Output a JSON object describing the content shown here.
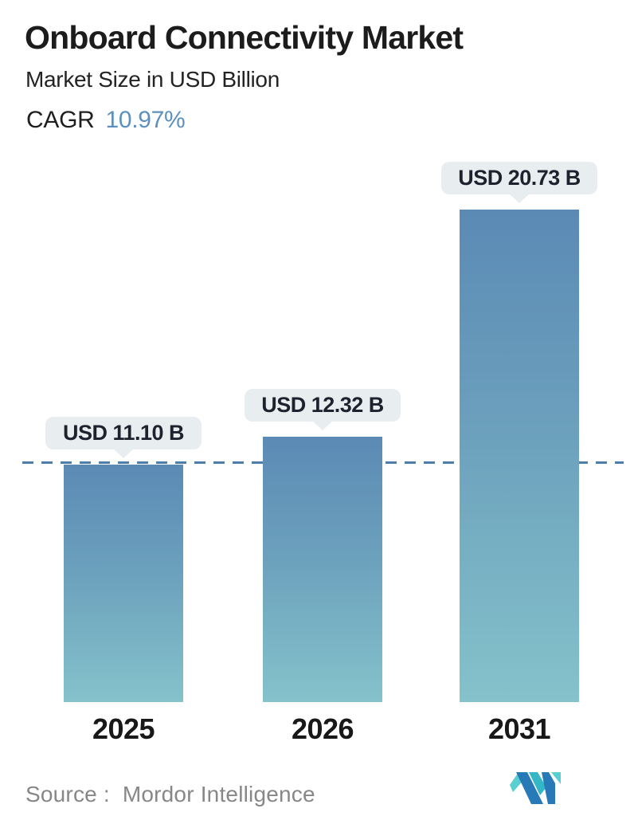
{
  "header": {
    "title": "Onboard Connectivity Market",
    "subtitle": "Market Size in USD Billion",
    "cagr_label": "CAGR",
    "cagr_value": "10.97%"
  },
  "chart_data": {
    "type": "bar",
    "title": "Onboard Connectivity Market",
    "ylabel": "Market Size in USD Billion",
    "cagr_percent": 10.97,
    "categories": [
      "2025",
      "2026",
      "2031"
    ],
    "values": [
      11.1,
      12.32,
      20.73
    ],
    "bar_labels": [
      "USD 11.10 B",
      "USD 12.32 B",
      "USD 20.73 B"
    ],
    "orientation": "vertical",
    "legend": "none",
    "grid": "off",
    "baseline": {
      "style": "dashed",
      "at_value": 11.1
    },
    "colors": {
      "bar_top": "#5b8ab5",
      "bar_mid": "#6da2bd",
      "bar_bottom": "#85c2cb",
      "dash_line": "#4d7da9",
      "label_bg": "#e8eef0",
      "cagr_accent": "#5b90bf",
      "logo_blue": "#2879b7",
      "logo_teal": "#59cfd2",
      "logo_teal_dark": "#33b6c6"
    }
  },
  "footer": {
    "source_label": "Source :  Mordor Intelligence",
    "logo_name": "mordor-intelligence-logo"
  }
}
